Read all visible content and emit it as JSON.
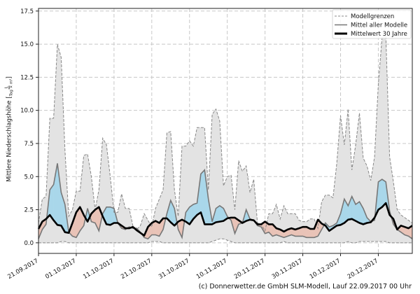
{
  "chart_data": {
    "type": "area",
    "title": "",
    "xlabel": "",
    "ylabel": "Mittlere Niederschlagshöhe",
    "ylabel_unit": {
      "numerator": "L",
      "denominator": "Tag × m²"
    },
    "x_unit": "days since 21.09.2017",
    "xlim": [
      0,
      99
    ],
    "ylim": [
      -0.8,
      17.7
    ],
    "grid": true,
    "legend_position": "top-right",
    "y_ticks": [
      0.0,
      2.5,
      5.0,
      7.5,
      10.0,
      12.5,
      15.0,
      17.5
    ],
    "y_tick_labels": [
      "0.0",
      "2.5",
      "5.0",
      "7.5",
      "10.0",
      "12.5",
      "15.0",
      "17.5"
    ],
    "x_ticks": [
      0,
      10,
      20,
      30,
      40,
      50,
      60,
      70,
      80,
      90
    ],
    "x_tick_labels": [
      "21.09.2017",
      "01.10.2017",
      "11.10.2017",
      "21.10.2017",
      "31.10.2017",
      "10.11.2017",
      "20.11.2017",
      "30.11.2017",
      "10.12.2017",
      "20.12.2017"
    ],
    "legend": [
      "Modellgrenzen",
      "Mittel aller Modelle",
      "Mittelwert 30 Jahre"
    ],
    "colors": {
      "range_fill": "#e3e3e3",
      "above": "#a9d7ea",
      "below": "#e9c3b7",
      "model_line": "#777777",
      "climate_line": "#000000",
      "bounds_line": "#888888"
    },
    "series": [
      {
        "name": "Modellgrenzen (max)",
        "values": [
          1.5,
          3.3,
          3.5,
          9.4,
          9.4,
          15.0,
          14.0,
          7.0,
          2.0,
          2.5,
          3.9,
          3.9,
          6.6,
          6.7,
          5.0,
          2.5,
          4.0,
          7.9,
          7.4,
          5.0,
          2.3,
          2.3,
          3.7,
          2.6,
          2.6,
          1.3,
          1.0,
          1.3,
          2.2,
          1.7,
          1.2,
          2.6,
          3.3,
          4.0,
          8.3,
          8.4,
          4.0,
          2.0,
          7.3,
          7.3,
          7.7,
          7.3,
          8.7,
          8.7,
          8.7,
          4.0,
          9.7,
          10.1,
          9.2,
          4.3,
          5.0,
          5.1,
          2.5,
          6.2,
          5.4,
          5.8,
          3.8,
          4.8,
          1.5,
          1.4,
          0.9,
          2.2,
          2.2,
          2.9,
          1.8,
          2.8,
          2.2,
          2.2,
          2.2,
          1.7,
          1.6,
          1.6,
          1.8,
          1.8,
          1.1,
          3.1,
          3.6,
          3.6,
          3.4,
          6.0,
          9.6,
          7.4,
          10.1,
          5.5,
          7.4,
          9.8,
          6.4,
          5.8,
          4.7,
          6.5,
          12.0,
          15.5,
          15.7,
          6.5,
          4.6,
          2.5,
          2.1,
          1.9,
          1.7,
          1.5
        ]
      },
      {
        "name": "Modellgrenzen (min)",
        "values": [
          0,
          0,
          0,
          0,
          0,
          0,
          0.1,
          0.1,
          0,
          0,
          0,
          0,
          0,
          0,
          0,
          0,
          0,
          0,
          0,
          0,
          0,
          0,
          0,
          0,
          0,
          0,
          0,
          0,
          0,
          0,
          0.1,
          0.1,
          0.1,
          0,
          0,
          0,
          0,
          0,
          0,
          0,
          0,
          0,
          0,
          0,
          0,
          0,
          0.1,
          0.2,
          0.3,
          0.3,
          0.2,
          0.1,
          0,
          0,
          0,
          0,
          0,
          0,
          0,
          0,
          0,
          0,
          0,
          0,
          0,
          0.1,
          0,
          0,
          0,
          0,
          0,
          0,
          0,
          0,
          0,
          0,
          0,
          0,
          0,
          0,
          0,
          0,
          0.1,
          0,
          0,
          0.1,
          0.1,
          0.1,
          0.1,
          0.1,
          0.1,
          0.1,
          0.1,
          0,
          0,
          0,
          0,
          0,
          0,
          0
        ]
      },
      {
        "name": "Mittel aller Modelle",
        "values": [
          0.3,
          1.0,
          1.4,
          4.0,
          4.4,
          6.0,
          3.8,
          2.9,
          0.8,
          0.5,
          0.4,
          0.9,
          1.3,
          2.6,
          1.6,
          1.5,
          0.9,
          2.2,
          2.7,
          2.7,
          2.6,
          1.5,
          1.1,
          1.0,
          1.2,
          1.1,
          1.1,
          0.8,
          0.4,
          0.3,
          0.6,
          0.6,
          0.5,
          1.0,
          2.2,
          3.2,
          2.6,
          1.0,
          0.4,
          2.3,
          2.7,
          2.9,
          3.0,
          5.2,
          5.5,
          3.3,
          1.6,
          2.6,
          2.8,
          2.6,
          2.0,
          1.7,
          0.7,
          1.4,
          1.5,
          2.5,
          1.8,
          1.7,
          1.3,
          1.2,
          0.7,
          0.8,
          0.5,
          0.6,
          0.5,
          0.4,
          0.5,
          0.6,
          0.5,
          0.5,
          0.5,
          0.4,
          0.4,
          0.4,
          0.5,
          1.0,
          1.5,
          1.2,
          1.3,
          1.5,
          2.2,
          3.3,
          2.8,
          3.5,
          2.9,
          3.1,
          2.6,
          1.9,
          1.6,
          1.7,
          4.6,
          4.8,
          4.6,
          2.4,
          1.4,
          1.0,
          0.8,
          0.6,
          0.5,
          0.3
        ]
      },
      {
        "name": "Mittelwert 30 Jahre",
        "values": [
          1.05,
          1.6,
          1.8,
          2.1,
          1.7,
          1.35,
          1.3,
          0.8,
          0.75,
          1.5,
          2.3,
          2.7,
          2.1,
          1.6,
          2.2,
          2.5,
          2.7,
          2.0,
          1.4,
          1.35,
          1.5,
          1.5,
          1.3,
          1.1,
          1.1,
          1.2,
          0.95,
          0.75,
          0.55,
          1.2,
          1.5,
          1.65,
          1.5,
          1.85,
          1.85,
          1.55,
          1.3,
          1.6,
          1.75,
          1.6,
          1.4,
          1.8,
          2.1,
          2.3,
          1.4,
          1.4,
          1.4,
          1.55,
          1.6,
          1.65,
          1.85,
          1.9,
          1.9,
          1.7,
          1.5,
          1.65,
          1.75,
          1.7,
          1.4,
          1.4,
          1.6,
          1.4,
          1.4,
          1.1,
          1.0,
          0.85,
          1.0,
          1.1,
          1.0,
          1.1,
          1.2,
          1.2,
          1.05,
          1.05,
          1.75,
          1.45,
          1.3,
          0.9,
          1.1,
          1.3,
          1.35,
          1.5,
          1.75,
          1.8,
          1.65,
          1.5,
          1.4,
          1.5,
          1.55,
          1.9,
          2.5,
          2.7,
          3.0,
          2.1,
          1.8,
          1.0,
          1.3,
          1.2,
          1.1,
          1.3
        ]
      }
    ]
  },
  "footer": "(c) Donnerwetter.de GmbH SLM-Modell, Lauf 22.09.2017 00 Uhr"
}
